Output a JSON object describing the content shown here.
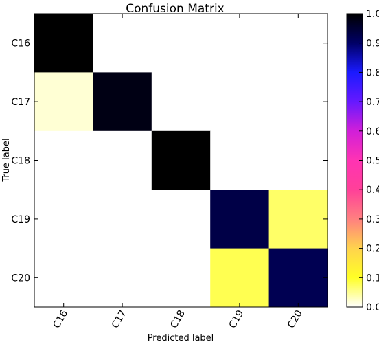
{
  "chart_data": {
    "type": "heatmap",
    "title": "Confusion Matrix",
    "xlabel": "Predicted label",
    "ylabel": "True label",
    "x_categories": [
      "C16",
      "C17",
      "C18",
      "C19",
      "C20"
    ],
    "y_categories": [
      "C16",
      "C17",
      "C18",
      "C19",
      "C20"
    ],
    "values": [
      [
        1.0,
        0.0,
        0.0,
        0.0,
        0.0
      ],
      [
        0.02,
        0.98,
        0.0,
        0.0,
        0.0
      ],
      [
        0.0,
        0.0,
        1.0,
        0.0,
        0.0
      ],
      [
        0.0,
        0.0,
        0.0,
        0.93,
        0.07
      ],
      [
        0.0,
        0.0,
        0.0,
        0.08,
        0.92
      ]
    ],
    "colorbar": {
      "min": 0.0,
      "max": 1.0,
      "ticks": [
        "0.0",
        "0.1",
        "0.2",
        "0.3",
        "0.4",
        "0.5",
        "0.6",
        "0.7",
        "0.8",
        "0.9",
        "1.0"
      ],
      "colormap": "gnuplot2_r"
    }
  }
}
